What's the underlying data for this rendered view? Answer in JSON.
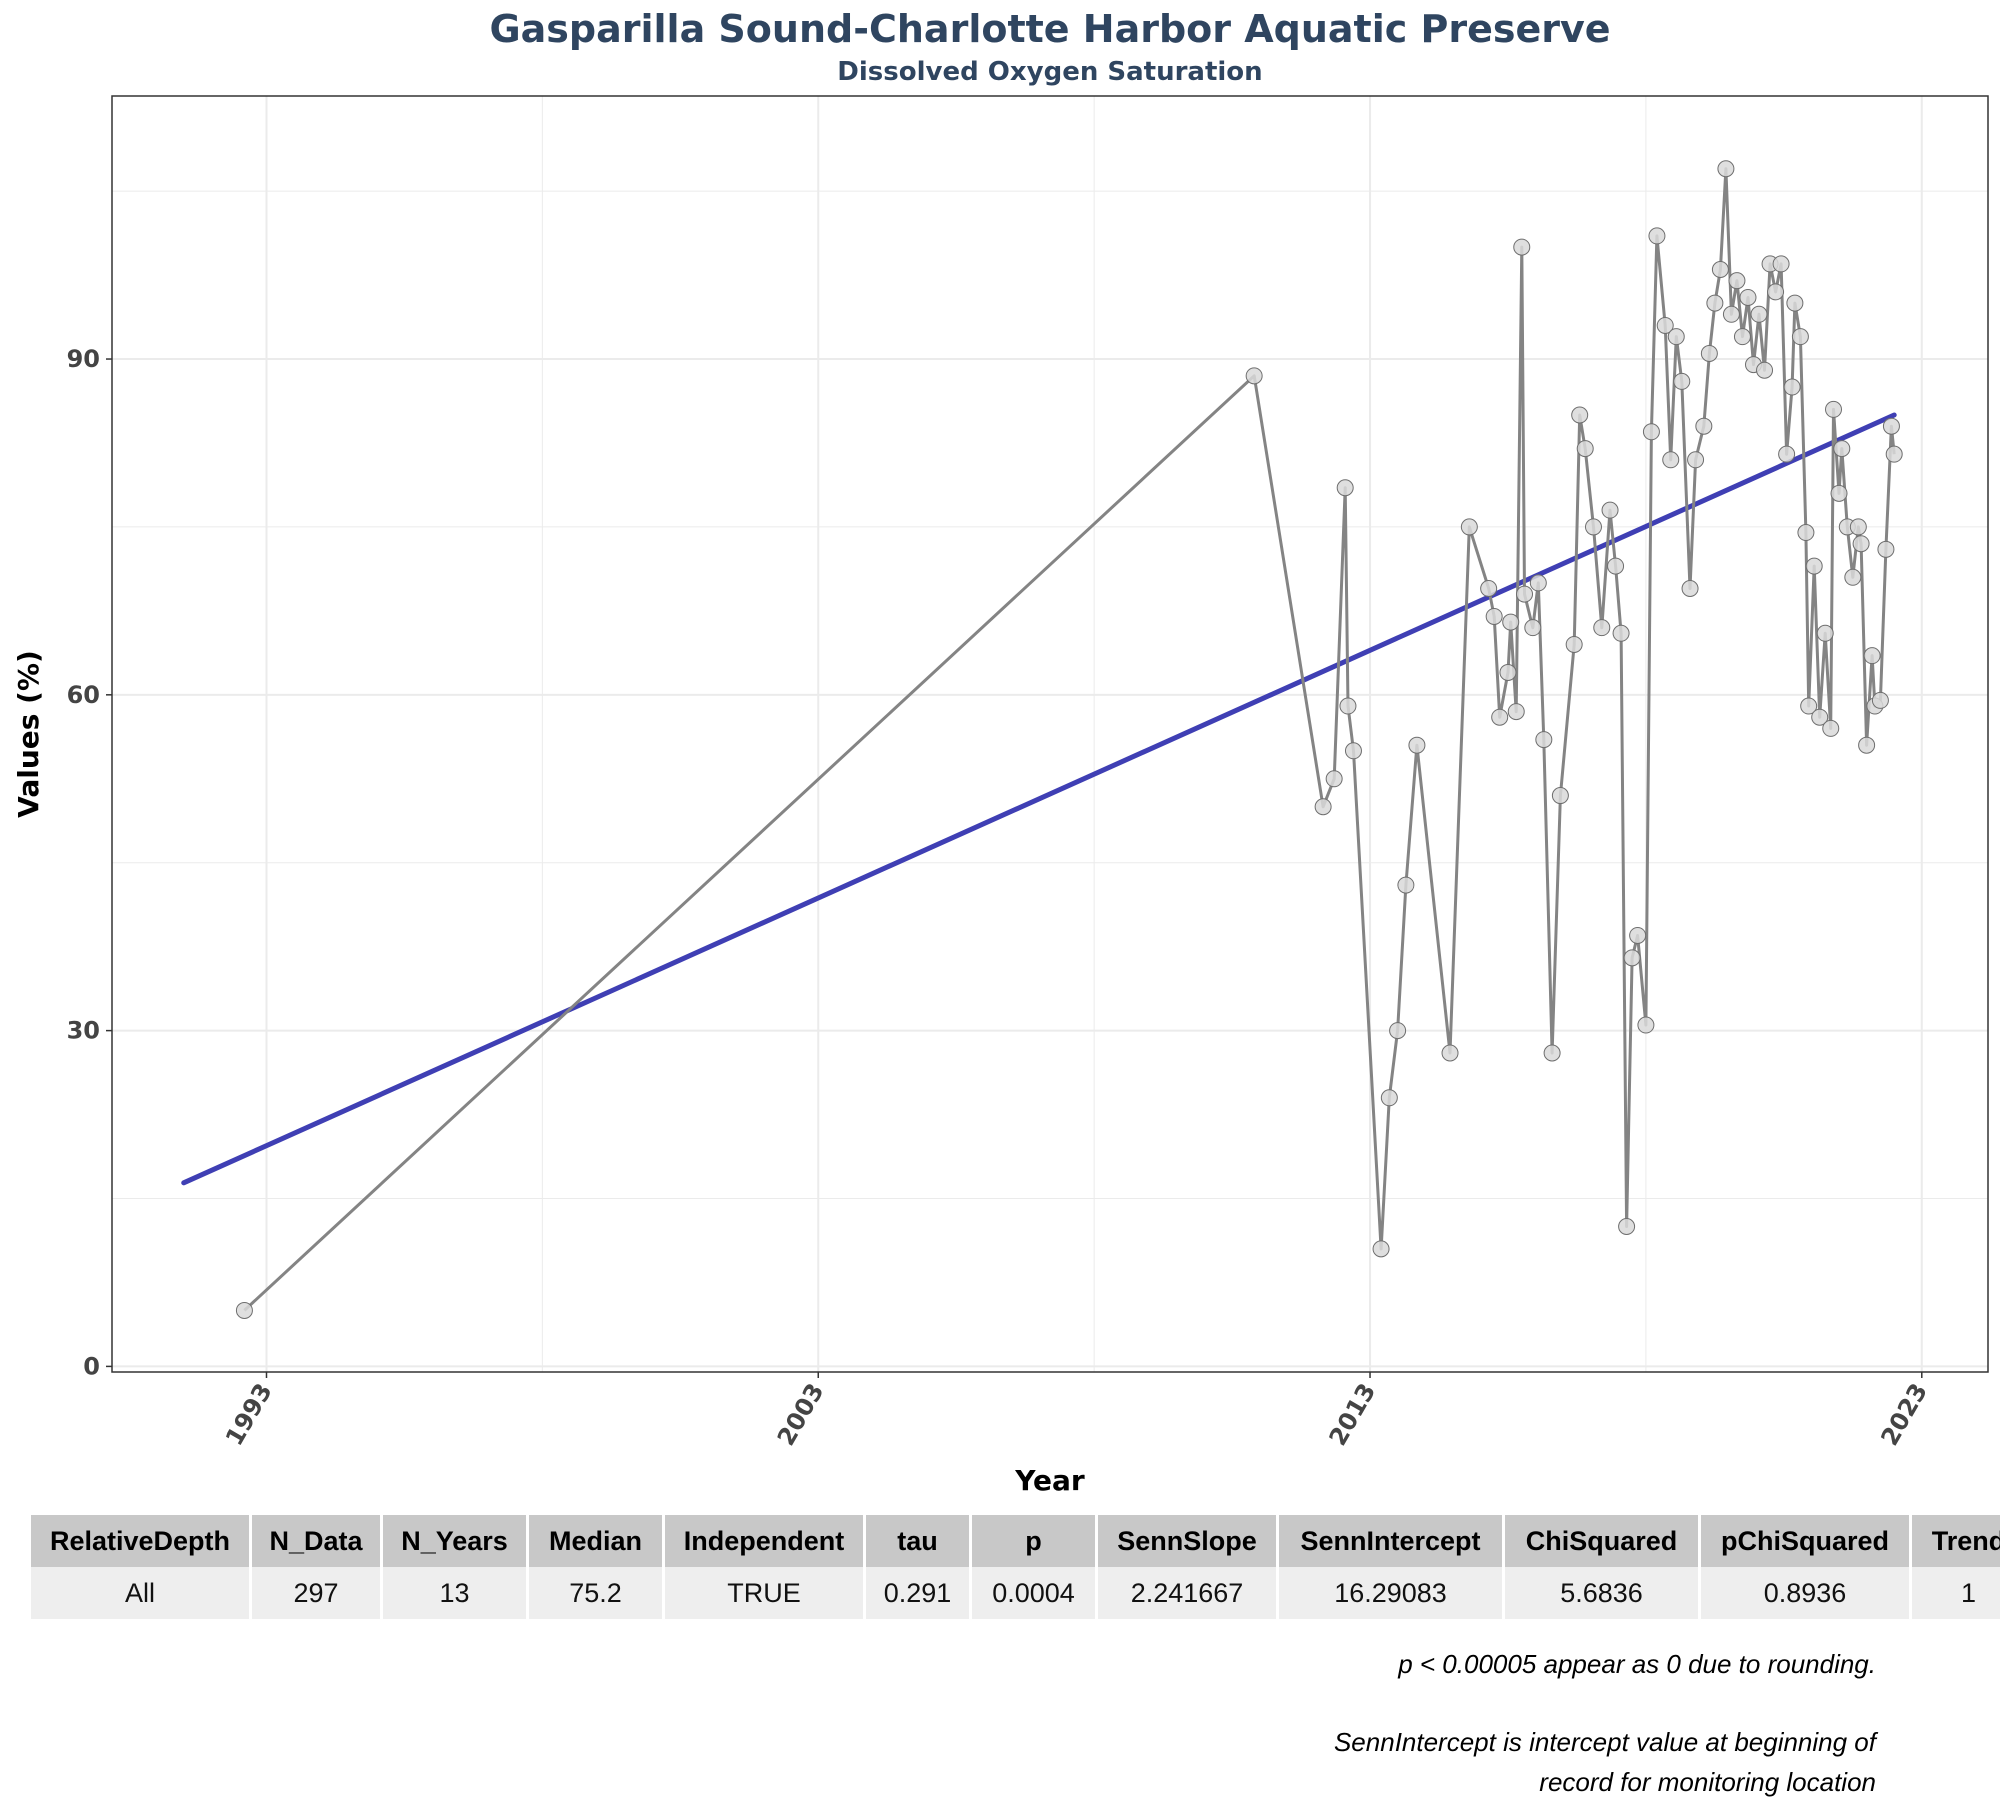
{
  "chart_data": {
    "type": "line",
    "title": "Gasparilla Sound-Charlotte Harbor Aquatic Preserve",
    "subtitle": "Dissolved Oxygen Saturation",
    "xlabel": "Year",
    "ylabel": "Values (%)",
    "xlim": [
      1990.2,
      2024.2
    ],
    "ylim": [
      -0.5,
      113.5
    ],
    "x_ticks": [
      1993,
      2003,
      2013,
      2023
    ],
    "y_ticks": [
      0,
      30,
      60,
      90
    ],
    "grid": true,
    "series": [
      {
        "name": "Observed",
        "x": [
          1992.6,
          2010.9,
          2012.15,
          2012.35,
          2012.55,
          2012.6,
          2012.7,
          2013.2,
          2013.35,
          2013.5,
          2013.65,
          2013.85,
          2014.45,
          2014.8,
          2015.15,
          2015.25,
          2015.35,
          2015.5,
          2015.55,
          2015.65,
          2015.75,
          2015.8,
          2015.95,
          2016.05,
          2016.15,
          2016.3,
          2016.45,
          2016.7,
          2016.8,
          2016.9,
          2017.05,
          2017.2,
          2017.35,
          2017.45,
          2017.55,
          2017.65,
          2017.75,
          2017.85,
          2018.0,
          2018.1,
          2018.2,
          2018.35,
          2018.45,
          2018.55,
          2018.65,
          2018.8,
          2018.9,
          2019.05,
          2019.15,
          2019.25,
          2019.35,
          2019.45,
          2019.55,
          2019.65,
          2019.75,
          2019.85,
          2019.95,
          2020.05,
          2020.15,
          2020.25,
          2020.35,
          2020.45,
          2020.55,
          2020.65,
          2020.7,
          2020.8,
          2020.9,
          2020.95,
          2021.05,
          2021.15,
          2021.25,
          2021.35,
          2021.4,
          2021.5,
          2021.55,
          2021.65,
          2021.75,
          2021.85,
          2021.9,
          2022.0,
          2022.1,
          2022.15,
          2022.25,
          2022.35,
          2022.45,
          2022.5
        ],
        "values": [
          5,
          88.5,
          50,
          52.5,
          78.5,
          59,
          55,
          10.5,
          24,
          30,
          43,
          55.5,
          28,
          75,
          69.5,
          67,
          58,
          62,
          66.5,
          58.5,
          100,
          69,
          66,
          70,
          56,
          28,
          51,
          64.5,
          85,
          82,
          75,
          66,
          76.5,
          71.5,
          65.5,
          12.5,
          36.5,
          38.5,
          30.5,
          83.5,
          101,
          93,
          81,
          92,
          88,
          69.5,
          81,
          84,
          90.5,
          95,
          98,
          107,
          94,
          97,
          92,
          95.5,
          89.5,
          94,
          89,
          98.5,
          96,
          98.5,
          81.5,
          87.5,
          95,
          92,
          74.5,
          59,
          71.5,
          58,
          65.5,
          57,
          85.5,
          78,
          82,
          75,
          70.5,
          75,
          73.5,
          55.5,
          63.5,
          59,
          59.5,
          73,
          84,
          81.5
        ]
      }
    ],
    "trend": {
      "name": "Senn trend",
      "x": [
        1991.5,
        2022.5
      ],
      "values": [
        16.4,
        85.0
      ]
    },
    "colors": {
      "observed_line": "#848484",
      "point_fill": "#d9d9d9",
      "point_stroke": "#6e6e6e",
      "trend_line": "#3f3fb4",
      "grid": "#ebebeb",
      "title": "#2f4560"
    }
  },
  "table": {
    "headers": [
      "RelativeDepth",
      "N_Data",
      "N_Years",
      "Median",
      "Independent",
      "tau",
      "p",
      "SennSlope",
      "SennIntercept",
      "ChiSquared",
      "pChiSquared",
      "Trend"
    ],
    "rows": [
      [
        "All",
        "297",
        "13",
        "75.2",
        "TRUE",
        "0.291",
        "0.0004",
        "2.241667",
        "16.29083",
        "5.6836",
        "0.8936",
        "1"
      ]
    ]
  },
  "notes": {
    "rounding": "p < 0.00005 appear as 0 due to rounding.",
    "intercept_line1": "SennIntercept is intercept value at beginning of",
    "intercept_line2": "record for monitoring location"
  }
}
